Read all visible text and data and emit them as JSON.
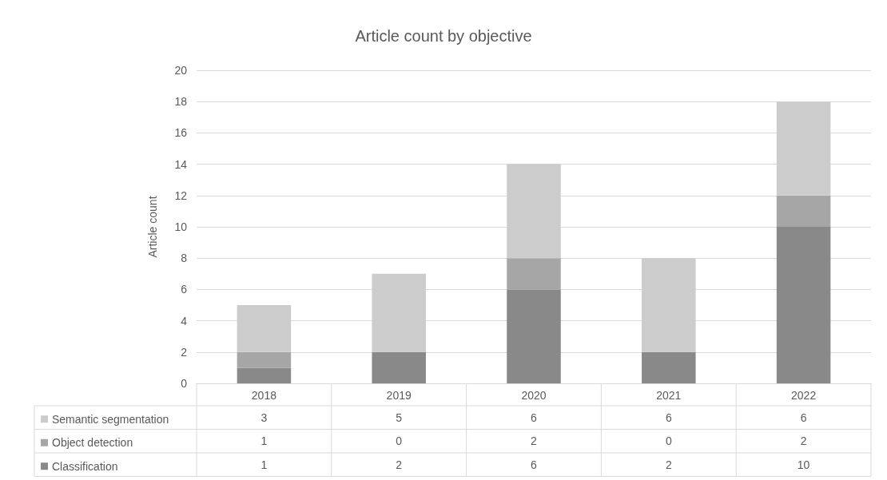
{
  "chart_data": {
    "type": "bar",
    "title": "Article count by objective",
    "ylabel": "Article count",
    "categories": [
      "2018",
      "2019",
      "2020",
      "2021",
      "2022"
    ],
    "series": [
      {
        "name": "Classification",
        "color": "#898989",
        "values": [
          1,
          2,
          6,
          2,
          10
        ]
      },
      {
        "name": "Object detection",
        "color": "#a6a6a6",
        "values": [
          1,
          0,
          2,
          0,
          2
        ]
      },
      {
        "name": "Semantic segmentation",
        "color": "#cccccc",
        "values": [
          3,
          5,
          6,
          6,
          6
        ]
      }
    ],
    "stacked": true,
    "ylim": [
      0,
      20
    ],
    "yticks": [
      0,
      2,
      4,
      6,
      8,
      10,
      12,
      14,
      16,
      18,
      20
    ],
    "grid": "y",
    "legend": "bottom left",
    "data_labels": true
  }
}
